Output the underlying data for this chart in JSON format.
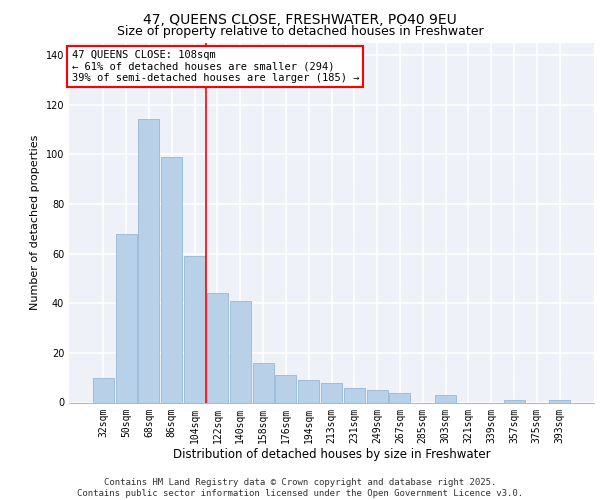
{
  "title1": "47, QUEENS CLOSE, FRESHWATER, PO40 9EU",
  "title2": "Size of property relative to detached houses in Freshwater",
  "xlabel": "Distribution of detached houses by size in Freshwater",
  "ylabel": "Number of detached properties",
  "categories": [
    "32sqm",
    "50sqm",
    "68sqm",
    "86sqm",
    "104sqm",
    "122sqm",
    "140sqm",
    "158sqm",
    "176sqm",
    "194sqm",
    "213sqm",
    "231sqm",
    "249sqm",
    "267sqm",
    "285sqm",
    "303sqm",
    "321sqm",
    "339sqm",
    "357sqm",
    "375sqm",
    "393sqm"
  ],
  "values": [
    10,
    68,
    114,
    99,
    59,
    44,
    41,
    16,
    11,
    9,
    8,
    6,
    5,
    4,
    0,
    3,
    0,
    0,
    1,
    0,
    1
  ],
  "bar_color": "#b8d0e8",
  "bar_edge_color": "#8ab0d0",
  "vline_x": 4.5,
  "vline_color": "red",
  "annotation_text": "47 QUEENS CLOSE: 108sqm\n← 61% of detached houses are smaller (294)\n39% of semi-detached houses are larger (185) →",
  "ylim": [
    0,
    145
  ],
  "yticks": [
    0,
    20,
    40,
    60,
    80,
    100,
    120,
    140
  ],
  "background_color": "#eef2f8",
  "grid_color": "#ffffff",
  "footer_text": "Contains HM Land Registry data © Crown copyright and database right 2025.\nContains public sector information licensed under the Open Government Licence v3.0.",
  "title1_fontsize": 10,
  "title2_fontsize": 9,
  "xlabel_fontsize": 8.5,
  "ylabel_fontsize": 8,
  "tick_fontsize": 7,
  "annotation_fontsize": 7.5,
  "footer_fontsize": 6.5
}
